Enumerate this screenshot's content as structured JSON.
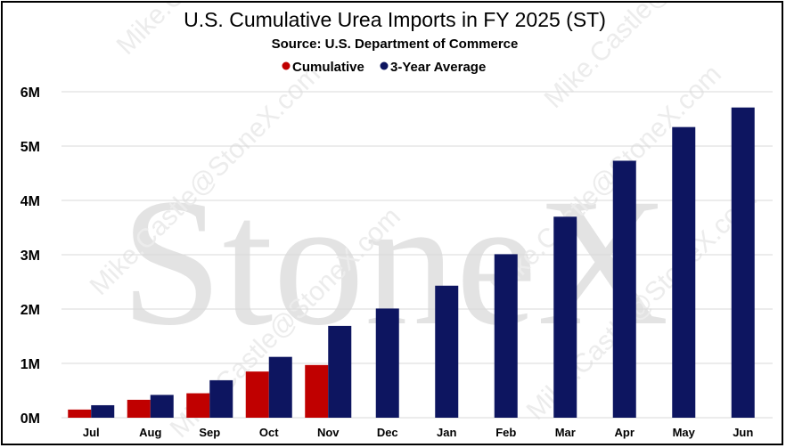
{
  "watermark": {
    "logo_text": "StoneX",
    "email": "Mike.Castle@StoneX.com"
  },
  "colors": {
    "cumulative": "#c00000",
    "three_year_average": "#0d1560",
    "gridline": "#d9d9d9"
  },
  "chart_data": {
    "type": "bar",
    "title": "U.S. Cumulative Urea Imports in FY 2025 (ST)",
    "subtitle": "Source: U.S. Department of Commerce",
    "xlabel": "",
    "ylabel": "",
    "ylim": [
      0,
      6000000
    ],
    "yticks": [
      0,
      1000000,
      2000000,
      3000000,
      4000000,
      5000000,
      6000000
    ],
    "ytick_labels": [
      "0M",
      "1M",
      "2M",
      "3M",
      "4M",
      "5M",
      "6M"
    ],
    "grid": true,
    "legend_position": "top-center",
    "categories": [
      "Jul",
      "Aug",
      "Sep",
      "Oct",
      "Nov",
      "Dec",
      "Jan",
      "Feb",
      "Mar",
      "Apr",
      "May",
      "Jun"
    ],
    "series": [
      {
        "name": "Cumulative",
        "values": [
          150000,
          330000,
          450000,
          850000,
          970000,
          null,
          null,
          null,
          null,
          null,
          null,
          null
        ]
      },
      {
        "name": "3-Year Average",
        "values": [
          230000,
          420000,
          690000,
          1120000,
          1690000,
          2010000,
          2430000,
          3010000,
          3700000,
          4730000,
          5350000,
          5710000
        ]
      }
    ]
  }
}
